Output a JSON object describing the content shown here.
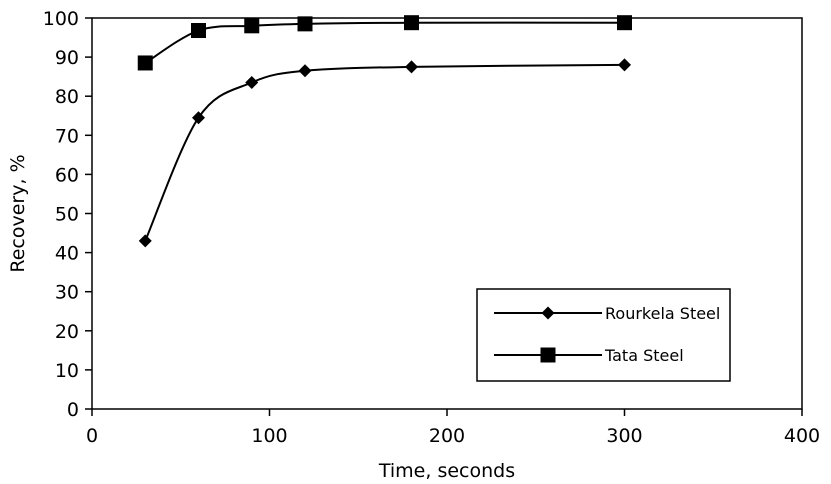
{
  "chart_data": {
    "type": "line",
    "title": "",
    "xlabel": "Time, seconds",
    "ylabel": "Recovery, %",
    "xlim": [
      0,
      400
    ],
    "ylim": [
      0,
      100
    ],
    "x_ticks": [
      0,
      100,
      200,
      300,
      400
    ],
    "y_ticks": [
      0,
      10,
      20,
      30,
      40,
      50,
      60,
      70,
      80,
      90,
      100
    ],
    "grid": false,
    "legend_position": "bottom-right",
    "series": [
      {
        "name": "Rourkela Steel",
        "marker": "diamond",
        "color": "#000000",
        "x": [
          30,
          60,
          90,
          120,
          180,
          300
        ],
        "y": [
          43,
          74.5,
          83.5,
          86.5,
          87.5,
          88
        ]
      },
      {
        "name": "Tata Steel",
        "marker": "square",
        "color": "#000000",
        "x": [
          30,
          60,
          90,
          120,
          180,
          300
        ],
        "y": [
          88.5,
          96.8,
          98,
          98.5,
          98.8,
          98.8
        ]
      }
    ]
  }
}
